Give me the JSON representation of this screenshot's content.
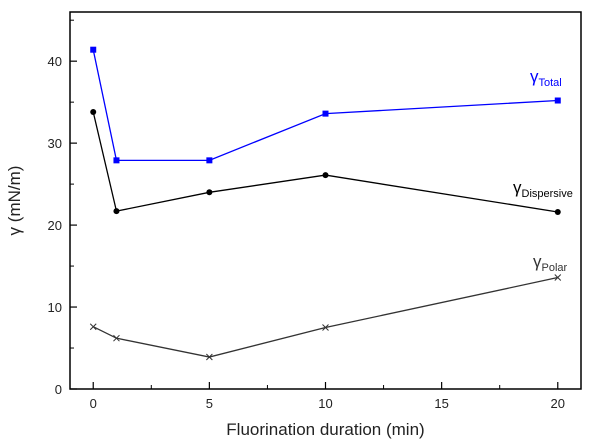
{
  "chart_data": {
    "type": "line",
    "title": "",
    "xlabel": "Fluorination duration (min)",
    "ylabel": "γ (mN/m)",
    "xlim": [
      -1,
      21
    ],
    "ylim": [
      0,
      46
    ],
    "x_ticks": [
      "0",
      "5",
      "10",
      "15",
      "20"
    ],
    "y_ticks": [
      "0",
      "10",
      "20",
      "30",
      "40"
    ],
    "grid": false,
    "legend": "inline labels",
    "x": [
      0,
      1,
      5,
      10,
      20
    ],
    "series": [
      {
        "name": "Total",
        "label_main": "γ",
        "label_sub": "Total",
        "color": "#0000ff",
        "marker": "square",
        "values": [
          41.4,
          27.9,
          27.9,
          33.6,
          35.2
        ]
      },
      {
        "name": "Dispersive",
        "label_main": "γ",
        "label_sub": "Dispersive",
        "color": "#000000",
        "marker": "circle",
        "values": [
          33.8,
          21.7,
          24.0,
          26.1,
          21.6
        ]
      },
      {
        "name": "Polar",
        "label_main": "γ",
        "label_sub": "Polar",
        "color": "#333333",
        "marker": "x",
        "values": [
          7.6,
          6.2,
          3.9,
          7.5,
          13.6
        ]
      }
    ]
  }
}
